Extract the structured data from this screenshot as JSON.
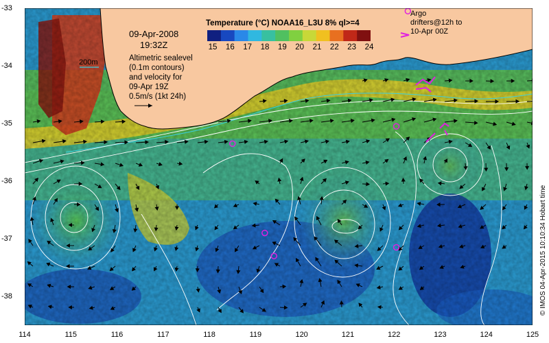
{
  "map": {
    "title_date": "09-Apr-2008",
    "title_time": "19:32Z",
    "colorbar_title": "Temperature (°C) NOAA16_L3U 8% ql>=4",
    "colorbar_ticks": [
      "15",
      "16",
      "17",
      "18",
      "19",
      "20",
      "21",
      "22",
      "23",
      "24"
    ],
    "colorbar_colors": [
      "#102080",
      "#1848c0",
      "#2a88e8",
      "#30b8e0",
      "#38c0a0",
      "#50c060",
      "#80d040",
      "#c8d838",
      "#f0c020",
      "#e87020",
      "#c02818",
      "#801010"
    ],
    "scale_label": "200m",
    "legend_lines": [
      "Altimetric sealevel",
      "(0.1m contours)",
      "and velocity for",
      "09-Apr 19Z",
      "0.5m/s (1kt 24h)"
    ],
    "argo_lines": [
      "Argo",
      "drifters@12h to",
      "10-Apr 00Z"
    ],
    "credit": "© IMOS 04-Apr-2015 10:10:34 Hobart time",
    "x_ticks": [
      "114",
      "115",
      "116",
      "117",
      "118",
      "119",
      "120",
      "121",
      "122",
      "123",
      "124",
      "125"
    ],
    "y_ticks": [
      "-33",
      "-34",
      "-35",
      "-36",
      "-37",
      "-38"
    ],
    "x_range": [
      114,
      125
    ],
    "y_range": [
      -38.5,
      -33
    ],
    "land_color": "#f8c8a0",
    "argo_color": "#e020e0",
    "contour_color": "#ffffff",
    "argo_positions": [
      {
        "lon": 118.5,
        "lat": -35.35
      },
      {
        "lon": 122.05,
        "lat": -35.05
      },
      {
        "lon": 119.2,
        "lat": -36.9
      },
      {
        "lon": 119.4,
        "lat": -37.3
      },
      {
        "lon": 122.05,
        "lat": -37.15
      },
      {
        "lon": 122.3,
        "lat": -33.05
      }
    ]
  }
}
